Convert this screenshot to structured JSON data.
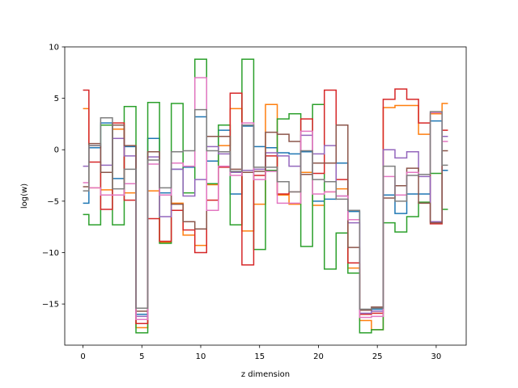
{
  "chart_data": {
    "type": "line",
    "step": true,
    "title": "",
    "xlabel": "z dimension",
    "ylabel": "log(w)",
    "xlim": [
      -1.55,
      32.55
    ],
    "ylim": [
      -19.0,
      10.0
    ],
    "xticks": [
      0,
      5,
      10,
      15,
      20,
      25,
      30
    ],
    "yticks": [
      -15,
      -10,
      -5,
      0,
      5,
      10
    ],
    "grid": false,
    "x": [
      0,
      1,
      2,
      3,
      4,
      5,
      6,
      7,
      8,
      9,
      10,
      11,
      12,
      13,
      14,
      15,
      16,
      17,
      18,
      19,
      20,
      21,
      22,
      23,
      24,
      25,
      26,
      27,
      28,
      29,
      30,
      31
    ],
    "series": [
      {
        "color": "#1f77b4",
        "values": [
          -5.2,
          0.2,
          2.6,
          -2.8,
          0.3,
          -16.0,
          1.1,
          -4.2,
          -1.9,
          -1.7,
          3.2,
          -1.1,
          1.9,
          -4.3,
          2.3,
          0.3,
          0.2,
          -0.3,
          -0.4,
          -0.2,
          -5.0,
          -4.8,
          -1.3,
          -6.0,
          -15.6,
          -15.5,
          -4.4,
          -6.2,
          -4.3,
          -4.3,
          2.8,
          -2.0
        ]
      },
      {
        "color": "#ff7f0e",
        "values": [
          4.0,
          -3.7,
          -3.9,
          2.0,
          -4.2,
          -17.3,
          -4.0,
          -9.0,
          -5.2,
          -8.3,
          -9.3,
          -3.4,
          0.4,
          4.0,
          -7.9,
          -5.3,
          4.4,
          -4.4,
          -5.3,
          -2.2,
          -5.4,
          -4.1,
          -3.8,
          -11.5,
          -16.6,
          -17.5,
          4.1,
          4.3,
          4.3,
          1.5,
          3.5,
          4.5
        ]
      },
      {
        "color": "#2ca02c",
        "values": [
          -6.3,
          -7.3,
          2.4,
          -7.3,
          4.2,
          -17.8,
          4.6,
          -9.1,
          4.5,
          -4.2,
          8.8,
          -3.3,
          2.4,
          -7.3,
          8.8,
          -9.7,
          -2.0,
          3.0,
          3.5,
          -9.4,
          4.4,
          -11.6,
          -8.1,
          -12.0,
          -17.8,
          -17.5,
          -7.1,
          -8.0,
          -6.5,
          -5.1,
          -2.3,
          -5.8
        ]
      },
      {
        "color": "#d62728",
        "values": [
          5.8,
          -1.2,
          -5.8,
          2.6,
          -4.9,
          -16.9,
          -6.7,
          -8.9,
          -5.9,
          -7.8,
          -10.0,
          -4.9,
          -1.7,
          5.5,
          -11.2,
          -2.5,
          -0.6,
          -4.3,
          -4.1,
          3.0,
          -2.3,
          5.8,
          -2.9,
          -11.0,
          -16.0,
          -15.9,
          4.9,
          5.9,
          4.9,
          2.6,
          -7.2,
          1.9
        ]
      },
      {
        "color": "#9467bd",
        "values": [
          -1.6,
          0.4,
          -1.5,
          1.1,
          -0.6,
          -16.2,
          -0.7,
          -6.5,
          -1.9,
          -4.5,
          -2.9,
          0.3,
          -0.4,
          -2.2,
          -2.0,
          -1.9,
          -0.3,
          -0.6,
          -1.6,
          1.4,
          -0.4,
          0.4,
          -4.5,
          -7.1,
          -15.9,
          -15.7,
          0.0,
          -0.8,
          -0.2,
          -2.6,
          -7.0,
          1.3
        ]
      },
      {
        "color": "#8c564b",
        "values": [
          -3.6,
          0.6,
          -2.2,
          2.4,
          0.4,
          -15.7,
          -0.2,
          -4.4,
          -5.3,
          -7.0,
          -7.7,
          1.3,
          1.3,
          -1.9,
          -2.2,
          -2.1,
          1.7,
          1.5,
          0.8,
          -2.4,
          -1.3,
          -1.3,
          2.4,
          -9.5,
          -15.6,
          -15.3,
          -4.7,
          -3.5,
          -1.8,
          -5.2,
          -7.1,
          -0.1
        ]
      },
      {
        "color": "#e377c2",
        "values": [
          -3.2,
          -3.7,
          -4.4,
          -4.4,
          -3.3,
          -16.5,
          -1.4,
          -4.4,
          -1.3,
          -1.6,
          7.0,
          -5.9,
          -1.6,
          -2.5,
          2.6,
          -2.9,
          -2.1,
          -5.2,
          -5.2,
          1.8,
          -4.3,
          -4.1,
          -4.5,
          -6.8,
          -16.3,
          -16.2,
          -2.6,
          -4.4,
          -2.2,
          -2.4,
          3.6,
          0.8
        ]
      },
      {
        "color": "#7f7f7f",
        "values": [
          -4.0,
          0.4,
          3.1,
          -3.8,
          -1.9,
          -15.4,
          -1.0,
          -3.7,
          -0.2,
          -0.1,
          3.9,
          -0.1,
          -0.2,
          -2.1,
          2.4,
          -1.7,
          -1.7,
          -3.1,
          -4.1,
          -0.1,
          -2.9,
          -3.1,
          -4.8,
          -5.9,
          -15.5,
          -15.4,
          -1.6,
          -5.0,
          -2.5,
          -2.4,
          3.7,
          -1.5
        ]
      }
    ]
  }
}
